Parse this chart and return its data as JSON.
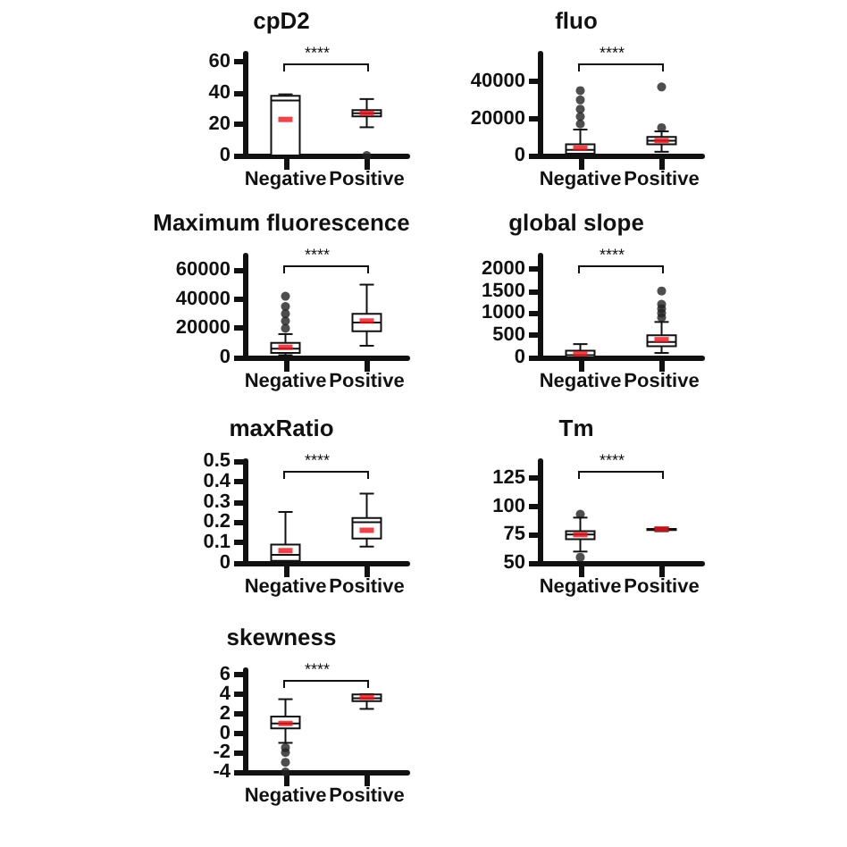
{
  "chart_data": [
    {
      "type": "box",
      "title": "cpD2",
      "categories": [
        "Negative",
        "Positive"
      ],
      "annotations": [
        "****"
      ],
      "ylim": [
        0,
        65
      ],
      "yticks": [
        0,
        20,
        40,
        60
      ],
      "grid": false,
      "boxes": [
        {
          "low": 0,
          "q1": 0,
          "median": 35,
          "q3": 38,
          "high": 39,
          "mean": 23
        },
        {
          "low": 18,
          "q1": 25,
          "median": 27,
          "q3": 29,
          "high": 36,
          "mean": 27,
          "outliers": [
            0
          ]
        }
      ]
    },
    {
      "type": "box",
      "title": "fluo",
      "categories": [
        "Negative",
        "Positive"
      ],
      "annotations": [
        "****"
      ],
      "ylim": [
        0,
        55000
      ],
      "yticks": [
        0,
        20000,
        40000
      ],
      "grid": false,
      "boxes": [
        {
          "low": 0,
          "q1": 1000,
          "median": 3000,
          "q3": 6000,
          "high": 14000,
          "mean": 4000,
          "outliers": [
            17000,
            21000,
            25000,
            30000,
            35000
          ]
        },
        {
          "low": 2000,
          "q1": 6000,
          "median": 8000,
          "q3": 10000,
          "high": 13000,
          "mean": 8000,
          "outliers": [
            15000,
            37000
          ]
        }
      ]
    },
    {
      "type": "box",
      "title": "Maximum fluorescence",
      "categories": [
        "Negative",
        "Positive"
      ],
      "annotations": [
        "****"
      ],
      "ylim": [
        0,
        70000
      ],
      "yticks": [
        0,
        20000,
        40000,
        60000
      ],
      "grid": false,
      "boxes": [
        {
          "low": 1500,
          "q1": 3000,
          "median": 6000,
          "q3": 10000,
          "high": 16000,
          "mean": 7000,
          "outliers": [
            20000,
            25000,
            30000,
            35000,
            42000
          ]
        },
        {
          "low": 8000,
          "q1": 18000,
          "median": 24000,
          "q3": 30000,
          "high": 50000,
          "mean": 25000
        }
      ]
    },
    {
      "type": "box",
      "title": "global slope",
      "categories": [
        "Negative",
        "Positive"
      ],
      "annotations": [
        "****"
      ],
      "ylim": [
        0,
        2300
      ],
      "yticks": [
        0,
        500,
        1000,
        1500,
        2000
      ],
      "grid": false,
      "boxes": [
        {
          "low": 0,
          "q1": 0,
          "median": 50,
          "q3": 150,
          "high": 300,
          "mean": 80
        },
        {
          "low": 100,
          "q1": 250,
          "median": 350,
          "q3": 500,
          "high": 800,
          "mean": 400,
          "outliers": [
            900,
            1000,
            1100,
            1200,
            1500
          ]
        }
      ]
    },
    {
      "type": "box",
      "title": "maxRatio",
      "categories": [
        "Negative",
        "Positive"
      ],
      "annotations": [
        "****"
      ],
      "ylim": [
        0,
        0.5
      ],
      "yticks": [
        0,
        0.1,
        0.2,
        0.3,
        0.4,
        0.5
      ],
      "grid": false,
      "boxes": [
        {
          "low": 0,
          "q1": 0.01,
          "median": 0.04,
          "q3": 0.09,
          "high": 0.25,
          "mean": 0.06
        },
        {
          "low": 0.08,
          "q1": 0.12,
          "median": 0.2,
          "q3": 0.22,
          "high": 0.34,
          "mean": 0.16
        }
      ]
    },
    {
      "type": "box",
      "title": "Tm",
      "categories": [
        "Negative",
        "Positive"
      ],
      "annotations": [
        "****"
      ],
      "ylim": [
        50,
        140
      ],
      "yticks": [
        50,
        75,
        100,
        125
      ],
      "grid": false,
      "boxes": [
        {
          "low": 60,
          "q1": 71,
          "median": 75,
          "q3": 78,
          "high": 90,
          "mean": 75,
          "outliers": [
            55,
            93
          ]
        },
        {
          "low": 78,
          "q1": 79,
          "median": 80,
          "q3": 80,
          "high": 81,
          "mean": 80
        }
      ]
    },
    {
      "type": "box",
      "title": "skewness",
      "categories": [
        "Negative",
        "Positive"
      ],
      "annotations": [
        "****"
      ],
      "ylim": [
        -4,
        6.5
      ],
      "yticks": [
        -4,
        -2,
        0,
        2,
        4,
        6
      ],
      "grid": false,
      "boxes": [
        {
          "low": -1,
          "q1": 0.5,
          "median": 1,
          "q3": 1.7,
          "high": 3.5,
          "mean": 1,
          "outliers": [
            -4,
            -3,
            -2,
            -1.5
          ]
        },
        {
          "low": 2.5,
          "q1": 3.3,
          "median": 3.6,
          "q3": 4,
          "high": 4,
          "mean": 3.7
        }
      ]
    }
  ]
}
